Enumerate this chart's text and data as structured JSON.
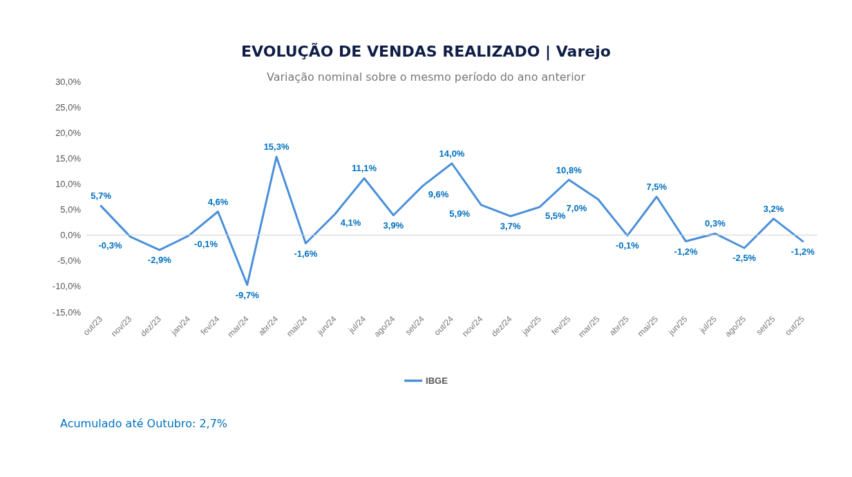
{
  "chart_data": {
    "type": "line",
    "title": "EVOLUÇÃO DE VENDAS REALIZADO | Varejo",
    "subtitle": "Variação nominal sobre o mesmo período do ano anterior",
    "categories": [
      "out/23",
      "nov/23",
      "dez/23",
      "jan/24",
      "fev/24",
      "mar/24",
      "abr/24",
      "mai/24",
      "jun/24",
      "jul/24",
      "ago/24",
      "set/24",
      "out/24",
      "nov/24",
      "dez/24",
      "jan/25",
      "fev/25",
      "mar/25",
      "abr/25",
      "mai/25",
      "jun/25",
      "jul/25",
      "ago/25",
      "set/25",
      "out/25"
    ],
    "series": [
      {
        "name": "IBGE",
        "color": "#4a90d9",
        "values": [
          5.7,
          -0.3,
          -2.9,
          -0.1,
          4.6,
          -9.7,
          15.3,
          -1.6,
          4.1,
          11.1,
          3.9,
          9.6,
          14.0,
          5.9,
          3.7,
          5.5,
          10.8,
          7.0,
          -0.1,
          7.5,
          -1.2,
          0.3,
          -2.5,
          3.2,
          -1.2
        ],
        "value_labels": [
          "5,7%",
          "-0,3%",
          "-2,9%",
          "-0,1%",
          "4,6%",
          "-9,7%",
          "15,3%",
          "-1,6%",
          "4,1%",
          "11,1%",
          "3,9%",
          "9,6%",
          "14,0%",
          "5,9%",
          "3,7%",
          "5,5%",
          "10,8%",
          "7,0%",
          "-0,1%",
          "7,5%",
          "-1,2%",
          "0,3%",
          "-2,5%",
          "3,2%",
          "-1,2%"
        ]
      }
    ],
    "ylim": [
      -15,
      30
    ],
    "yticks": [
      {
        "value": -15,
        "label": "-15,0%"
      },
      {
        "value": -10,
        "label": "-10,0%"
      },
      {
        "value": -5,
        "label": "-5,0%"
      },
      {
        "value": 0,
        "label": "0,0%"
      },
      {
        "value": 5,
        "label": "5,0%"
      },
      {
        "value": 10,
        "label": "10,0%"
      },
      {
        "value": 15,
        "label": "15,0%"
      },
      {
        "value": 20,
        "label": "20,0%"
      },
      {
        "value": 25,
        "label": "25,0%"
      },
      {
        "value": 30,
        "label": "30,0%"
      }
    ],
    "grid": false,
    "ref_lines": [
      {
        "axis": "y",
        "value": 0,
        "color": "#d0d0d0"
      }
    ],
    "legend": "bottom",
    "marker": "none",
    "line_style": "solid",
    "annotations": [
      "Acumulado até Outubro: 2,7%"
    ]
  }
}
